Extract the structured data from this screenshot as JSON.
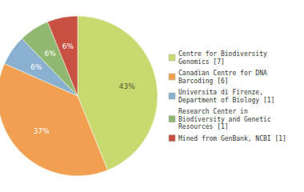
{
  "chart_data": {
    "type": "pie",
    "categories": [
      "Centre for Biodiversity\nGenomics [7]",
      "Canadian Centre for DNA\nBarcoding [6]",
      "Universita di Firenze,\nDepartment of Biology [1]",
      "Research Center in\nBiodiversity and Genetic\nResources [1]",
      "Mined from GenBank, NCBI [1]"
    ],
    "values": [
      43,
      37,
      6,
      6,
      6
    ],
    "value_labels": [
      "43%",
      "37%",
      "6%",
      "6%",
      "6%"
    ],
    "colors": [
      "#c8d96f",
      "#f0a050",
      "#8ab0d0",
      "#90b870",
      "#c85040"
    ],
    "data_labels": true,
    "legend": "right"
  }
}
